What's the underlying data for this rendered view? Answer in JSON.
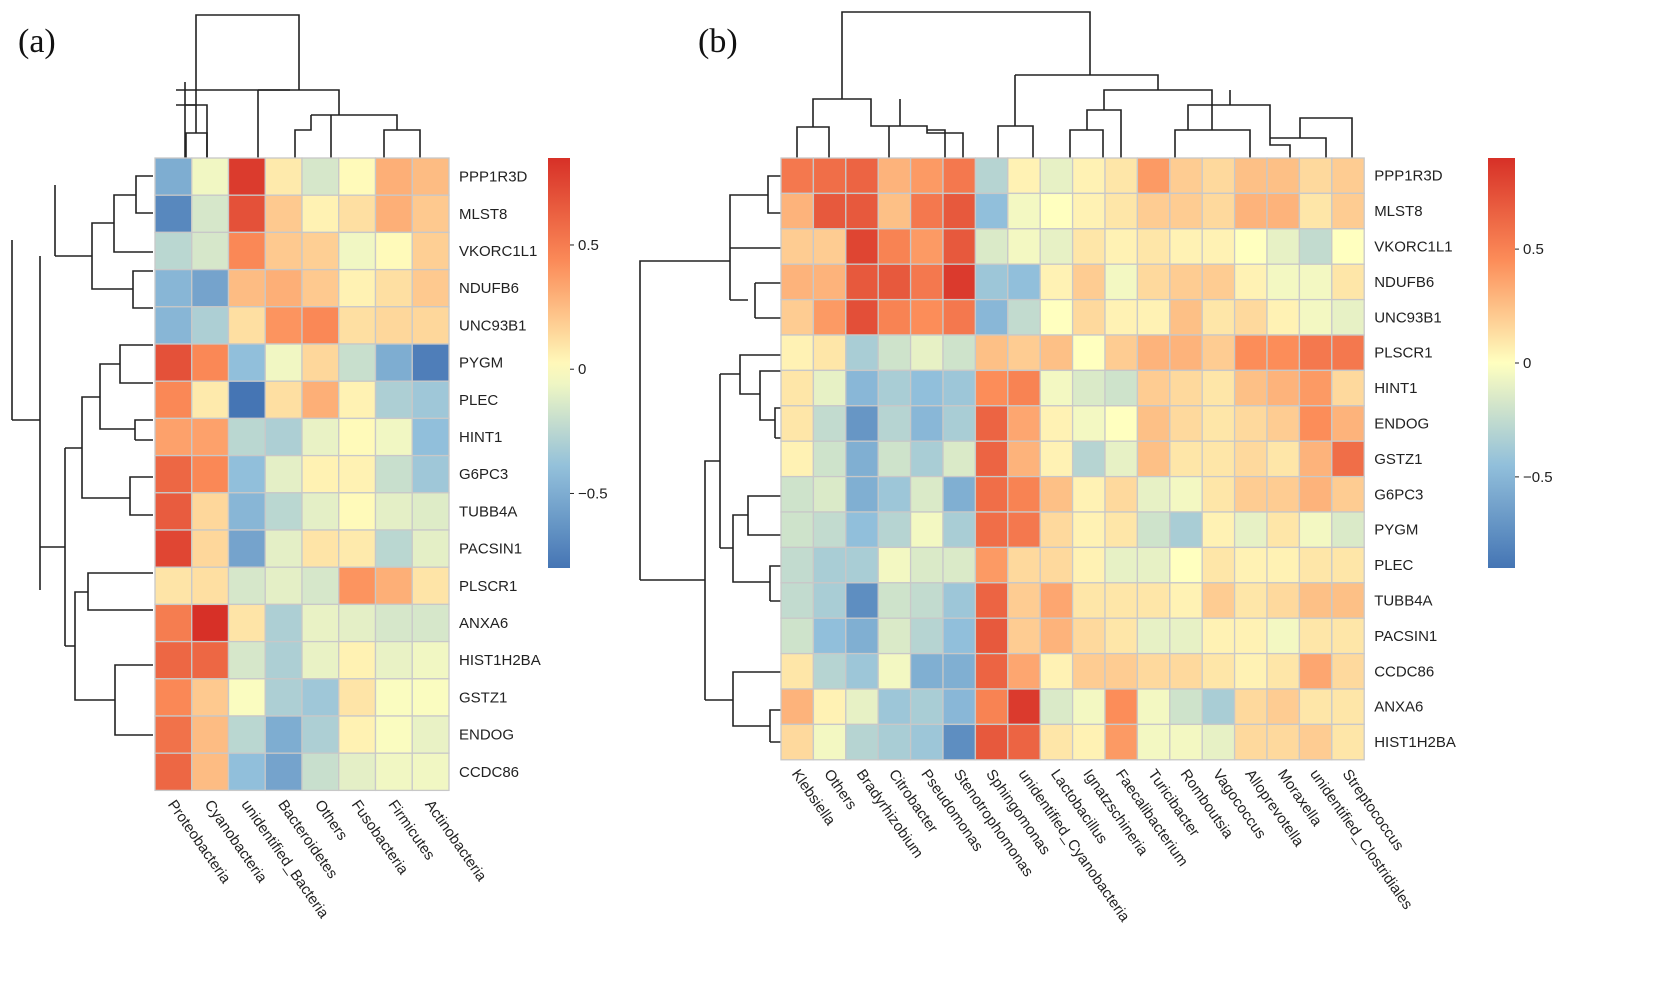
{
  "figure": {
    "panel_a": "(a)",
    "panel_b": "(b)"
  },
  "colors": {
    "low": "#4575b4",
    "mid": "#ffffbf",
    "high": "#d73027",
    "grid": "#c8c8c8"
  },
  "chart_data": [
    {
      "type": "heatmap",
      "panel": "(a)",
      "title": "",
      "columns": [
        "Proteobacteria",
        "Cyanobacteria",
        "unidentified_Bacteria",
        "Bacteroidetes",
        "Others",
        "Fusobacteria",
        "Firmicutes",
        "Actinobacteria"
      ],
      "rows": [
        "PPP1R3D",
        "MLST8",
        "VKORC1L1",
        "NDUFB6",
        "UNC93B1",
        "PYGM",
        "PLEC",
        "HINT1",
        "G6PC3",
        "TUBB4A",
        "PACSIN1",
        "PLSCR1",
        "ANXA6",
        "HIST1H2BA",
        "GSTZ1",
        "ENDOG",
        "CCDC86"
      ],
      "values": [
        [
          -0.5,
          -0.05,
          0.8,
          0.08,
          -0.15,
          0.02,
          0.3,
          0.25
        ],
        [
          -0.7,
          -0.15,
          0.7,
          0.2,
          0.05,
          0.12,
          0.3,
          0.2
        ],
        [
          -0.25,
          -0.15,
          0.45,
          0.2,
          0.18,
          -0.05,
          0.02,
          0.18
        ],
        [
          -0.45,
          -0.55,
          0.25,
          0.3,
          0.2,
          0.05,
          0.12,
          0.2
        ],
        [
          -0.45,
          -0.3,
          0.12,
          0.4,
          0.45,
          0.12,
          0.15,
          0.15
        ],
        [
          0.7,
          0.45,
          -0.4,
          -0.05,
          0.15,
          -0.2,
          -0.5,
          -0.75
        ],
        [
          0.45,
          0.08,
          -0.8,
          0.12,
          0.3,
          0.05,
          -0.3,
          -0.35
        ],
        [
          0.35,
          0.35,
          -0.25,
          -0.3,
          -0.08,
          0.02,
          -0.05,
          -0.4
        ],
        [
          0.6,
          0.45,
          -0.4,
          -0.1,
          0.05,
          0.05,
          -0.2,
          -0.35
        ],
        [
          0.65,
          0.15,
          -0.45,
          -0.25,
          -0.1,
          0.02,
          -0.1,
          -0.12
        ],
        [
          0.75,
          0.15,
          -0.55,
          -0.1,
          0.1,
          0.08,
          -0.25,
          -0.1
        ],
        [
          0.1,
          0.12,
          -0.15,
          -0.1,
          -0.15,
          0.4,
          0.3,
          0.1
        ],
        [
          0.5,
          0.85,
          0.1,
          -0.3,
          -0.08,
          -0.1,
          -0.15,
          -0.15
        ],
        [
          0.6,
          0.6,
          -0.15,
          -0.3,
          -0.08,
          0.05,
          -0.08,
          -0.05
        ],
        [
          0.45,
          0.2,
          -0.02,
          -0.3,
          -0.35,
          0.1,
          -0.02,
          -0.02
        ],
        [
          0.55,
          0.25,
          -0.25,
          -0.5,
          -0.3,
          0.05,
          -0.02,
          -0.08
        ],
        [
          0.6,
          0.25,
          -0.4,
          -0.55,
          -0.2,
          -0.1,
          -0.05,
          -0.05
        ]
      ],
      "legend": {
        "ticks": [
          "0.5",
          "0",
          "−0.5"
        ],
        "tick_values": [
          0.5,
          0,
          -0.5
        ],
        "range": [
          -0.8,
          0.85
        ],
        "placement": "right"
      }
    },
    {
      "type": "heatmap",
      "panel": "(b)",
      "title": "",
      "columns": [
        "Klebsiella",
        "Others",
        "Bradyrhizobium",
        "Citrobacter",
        "Pseudomonas",
        "Stenotrophomonas",
        "Sphingomonas",
        "unidentified_Cyanobacteria",
        "Lactobacillus",
        "Ignatzschineria",
        "Faecalibacterium",
        "Turicibacter",
        "Romboutsia",
        "Vagococcus",
        "Alloprevotella",
        "Moraxella",
        "unidentified_Clostridiales",
        "Streptococcus"
      ],
      "rows": [
        "PPP1R3D",
        "MLST8",
        "VKORC1L1",
        "NDUFB6",
        "UNC93B1",
        "PLSCR1",
        "HINT1",
        "ENDOG",
        "GSTZ1",
        "G6PC3",
        "PYGM",
        "PLEC",
        "TUBB4A",
        "PACSIN1",
        "CCDC86",
        "ANXA6",
        "HIST1H2BA"
      ],
      "values": [
        [
          0.55,
          0.6,
          0.65,
          0.3,
          0.4,
          0.55,
          -0.3,
          0.05,
          -0.1,
          0.05,
          0.1,
          0.4,
          0.2,
          0.15,
          0.25,
          0.25,
          0.15,
          0.2
        ],
        [
          0.3,
          0.7,
          0.7,
          0.25,
          0.55,
          0.7,
          -0.45,
          -0.05,
          0,
          0.05,
          0.1,
          0.2,
          0.2,
          0.15,
          0.3,
          0.3,
          0.1,
          0.2
        ],
        [
          0.2,
          0.2,
          0.8,
          0.5,
          0.4,
          0.7,
          -0.15,
          -0.05,
          -0.1,
          0.1,
          0.05,
          0.1,
          0.05,
          0.05,
          0,
          -0.1,
          -0.25,
          0
        ],
        [
          0.3,
          0.3,
          0.7,
          0.7,
          0.55,
          0.85,
          -0.4,
          -0.45,
          0.05,
          0.2,
          -0.05,
          0.15,
          0.2,
          0.2,
          0.05,
          -0.05,
          -0.05,
          0.1
        ],
        [
          0.2,
          0.4,
          0.75,
          0.5,
          0.45,
          0.55,
          -0.5,
          -0.25,
          0,
          0.15,
          0.05,
          0.05,
          0.25,
          0.1,
          0.15,
          0.05,
          -0.05,
          -0.1
        ],
        [
          0.05,
          0.1,
          -0.35,
          -0.2,
          -0.1,
          -0.2,
          0.25,
          0.2,
          0.25,
          0,
          0.2,
          0.3,
          0.3,
          0.2,
          0.45,
          0.45,
          0.55,
          0.55
        ],
        [
          0.1,
          -0.1,
          -0.5,
          -0.35,
          -0.45,
          -0.4,
          0.45,
          0.5,
          -0.05,
          -0.15,
          -0.2,
          0.2,
          0.15,
          0.1,
          0.25,
          0.3,
          0.4,
          0.15
        ],
        [
          0.1,
          -0.25,
          -0.7,
          -0.3,
          -0.5,
          -0.35,
          0.65,
          0.35,
          0.05,
          -0.05,
          0,
          0.25,
          0.15,
          0.1,
          0.15,
          0.2,
          0.45,
          0.3
        ],
        [
          0.05,
          -0.2,
          -0.55,
          -0.2,
          -0.35,
          -0.15,
          0.65,
          0.3,
          0.05,
          -0.3,
          -0.1,
          0.25,
          0.1,
          0.1,
          0.15,
          0.1,
          0.3,
          0.6
        ],
        [
          -0.2,
          -0.15,
          -0.55,
          -0.4,
          -0.15,
          -0.55,
          0.6,
          0.5,
          0.25,
          0.05,
          0.15,
          -0.1,
          -0.05,
          0.1,
          0.2,
          0.2,
          0.3,
          0.2
        ],
        [
          -0.2,
          -0.25,
          -0.45,
          -0.3,
          -0.05,
          -0.35,
          0.6,
          0.55,
          0.15,
          0.05,
          0.1,
          -0.2,
          -0.35,
          0.05,
          -0.1,
          0.1,
          -0.05,
          -0.15
        ],
        [
          -0.25,
          -0.35,
          -0.35,
          -0.05,
          -0.15,
          -0.15,
          0.4,
          0.15,
          0.15,
          0.05,
          -0.1,
          -0.1,
          0,
          0.1,
          0.05,
          0.05,
          0.1,
          0.1
        ],
        [
          -0.25,
          -0.35,
          -0.75,
          -0.2,
          -0.25,
          -0.4,
          0.65,
          0.2,
          0.35,
          0.1,
          0.1,
          0.1,
          0.05,
          0.2,
          0.1,
          0.15,
          0.25,
          0.25
        ],
        [
          -0.2,
          -0.45,
          -0.55,
          -0.15,
          -0.3,
          -0.45,
          0.7,
          0.2,
          0.3,
          0.15,
          0.1,
          -0.1,
          -0.1,
          0.05,
          0.05,
          -0.05,
          0.1,
          0.1
        ],
        [
          0.1,
          -0.3,
          -0.4,
          -0.05,
          -0.55,
          -0.55,
          0.65,
          0.35,
          0.05,
          0.2,
          0.2,
          0.15,
          0.15,
          0.1,
          0.05,
          0.1,
          0.35,
          0.15
        ],
        [
          0.3,
          0.05,
          -0.1,
          -0.4,
          -0.35,
          -0.5,
          0.5,
          0.85,
          -0.15,
          -0.05,
          0.45,
          -0.05,
          -0.2,
          -0.35,
          0.15,
          0.2,
          0.1,
          0.1
        ],
        [
          0.15,
          -0.05,
          -0.3,
          -0.35,
          -0.4,
          -0.75,
          0.7,
          0.65,
          0.1,
          0.05,
          0.4,
          -0.05,
          -0.05,
          -0.1,
          0.15,
          0.15,
          0.2,
          0.1
        ]
      ],
      "legend": {
        "ticks": [
          "0.5",
          "0",
          "−0.5"
        ],
        "tick_values": [
          0.5,
          0,
          -0.5
        ],
        "range": [
          -0.9,
          0.9
        ],
        "placement": "right"
      }
    }
  ]
}
